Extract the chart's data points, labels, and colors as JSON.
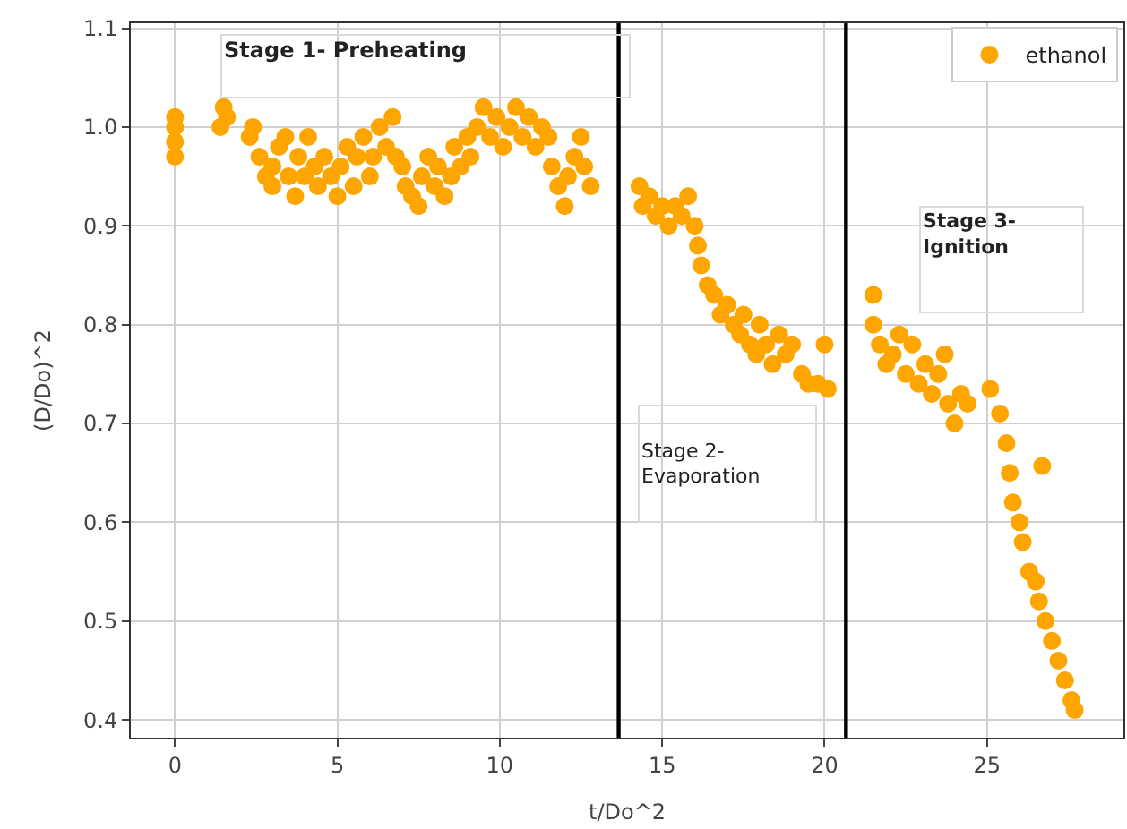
{
  "chart_data": {
    "type": "scatter",
    "xlabel": "t/Do^2",
    "ylabel": "(D/Do)^2",
    "xlim": [
      -1.36,
      29.2
    ],
    "ylim": [
      0.382,
      1.105
    ],
    "xticks": [
      0,
      5,
      10,
      15,
      20,
      25
    ],
    "yticks": [
      0.4,
      0.5,
      0.6,
      0.7,
      0.8,
      0.9,
      {
        "value": 1.0,
        "label": "1.0"
      },
      1.1
    ],
    "grid": true,
    "legend": "top right",
    "marker": "circle",
    "ref_lines": [
      {
        "axis": "x",
        "value": 13.66,
        "color": "#000000"
      },
      {
        "axis": "x",
        "value": 20.66,
        "color": "#000000"
      }
    ],
    "annotations": [
      "Stage 1- Preheating",
      "Stage 2-\nEvaporation",
      "Stage 3-\nIgnition"
    ],
    "series": [
      {
        "name": "ethanol",
        "color": "#ffa500",
        "x": [
          0,
          0,
          0,
          0,
          1.4,
          1.5,
          1.6,
          2.3,
          2.4,
          2.6,
          2.8,
          3.0,
          3.0,
          3.2,
          3.4,
          3.5,
          3.7,
          3.8,
          4.0,
          4.1,
          4.3,
          4.4,
          4.6,
          4.8,
          5.0,
          5.1,
          5.3,
          5.5,
          5.6,
          5.8,
          6.0,
          6.1,
          6.3,
          6.5,
          6.7,
          6.8,
          7.0,
          7.1,
          7.3,
          7.5,
          7.6,
          7.8,
          8.0,
          8.1,
          8.3,
          8.5,
          8.6,
          8.8,
          9.0,
          9.1,
          9.3,
          9.5,
          9.7,
          9.9,
          10.1,
          10.3,
          10.5,
          10.7,
          10.9,
          11.1,
          11.3,
          11.5,
          11.6,
          11.8,
          12.0,
          12.1,
          12.3,
          12.5,
          12.6,
          12.8,
          14.3,
          14.4,
          14.6,
          14.8,
          15.0,
          15.2,
          15.4,
          15.6,
          15.8,
          16.0,
          16.1,
          16.2,
          16.4,
          16.6,
          16.8,
          17.0,
          17.2,
          17.4,
          17.5,
          17.7,
          17.9,
          18.0,
          18.2,
          18.4,
          18.6,
          18.8,
          19.0,
          19.3,
          19.5,
          19.8,
          20.0,
          20.1,
          21.5,
          21.5,
          21.7,
          21.9,
          22.1,
          22.3,
          22.5,
          22.7,
          22.9,
          23.1,
          23.3,
          23.5,
          23.7,
          23.8,
          24.0,
          24.2,
          24.4,
          25.1,
          25.4,
          25.6,
          25.7,
          25.8,
          26.0,
          26.1,
          26.3,
          26.5,
          26.7,
          26.6,
          26.8,
          27.0,
          27.2,
          27.4,
          27.6,
          27.7
        ],
        "values": [
          0.97,
          0.985,
          1.0,
          1.01,
          1.0,
          1.02,
          1.01,
          0.99,
          1.0,
          0.97,
          0.95,
          0.96,
          0.94,
          0.98,
          0.99,
          0.95,
          0.93,
          0.97,
          0.95,
          0.99,
          0.96,
          0.94,
          0.97,
          0.95,
          0.93,
          0.96,
          0.98,
          0.94,
          0.97,
          0.99,
          0.95,
          0.97,
          1.0,
          0.98,
          1.01,
          0.97,
          0.96,
          0.94,
          0.93,
          0.92,
          0.95,
          0.97,
          0.94,
          0.96,
          0.93,
          0.95,
          0.98,
          0.96,
          0.99,
          0.97,
          1.0,
          1.02,
          0.99,
          1.01,
          0.98,
          1.0,
          1.02,
          0.99,
          1.01,
          0.98,
          1.0,
          0.99,
          0.96,
          0.94,
          0.92,
          0.95,
          0.97,
          0.99,
          0.96,
          0.94,
          0.94,
          0.92,
          0.93,
          0.91,
          0.92,
          0.9,
          0.92,
          0.91,
          0.93,
          0.9,
          0.88,
          0.86,
          0.84,
          0.83,
          0.81,
          0.82,
          0.8,
          0.79,
          0.81,
          0.78,
          0.77,
          0.8,
          0.78,
          0.76,
          0.79,
          0.77,
          0.78,
          0.75,
          0.74,
          0.74,
          0.78,
          0.735,
          0.83,
          0.8,
          0.78,
          0.76,
          0.77,
          0.79,
          0.75,
          0.78,
          0.74,
          0.76,
          0.73,
          0.75,
          0.77,
          0.72,
          0.7,
          0.73,
          0.72,
          0.735,
          0.71,
          0.68,
          0.65,
          0.62,
          0.6,
          0.58,
          0.55,
          0.54,
          0.657,
          0.52,
          0.5,
          0.48,
          0.46,
          0.44,
          0.42,
          0.41
        ]
      }
    ]
  }
}
